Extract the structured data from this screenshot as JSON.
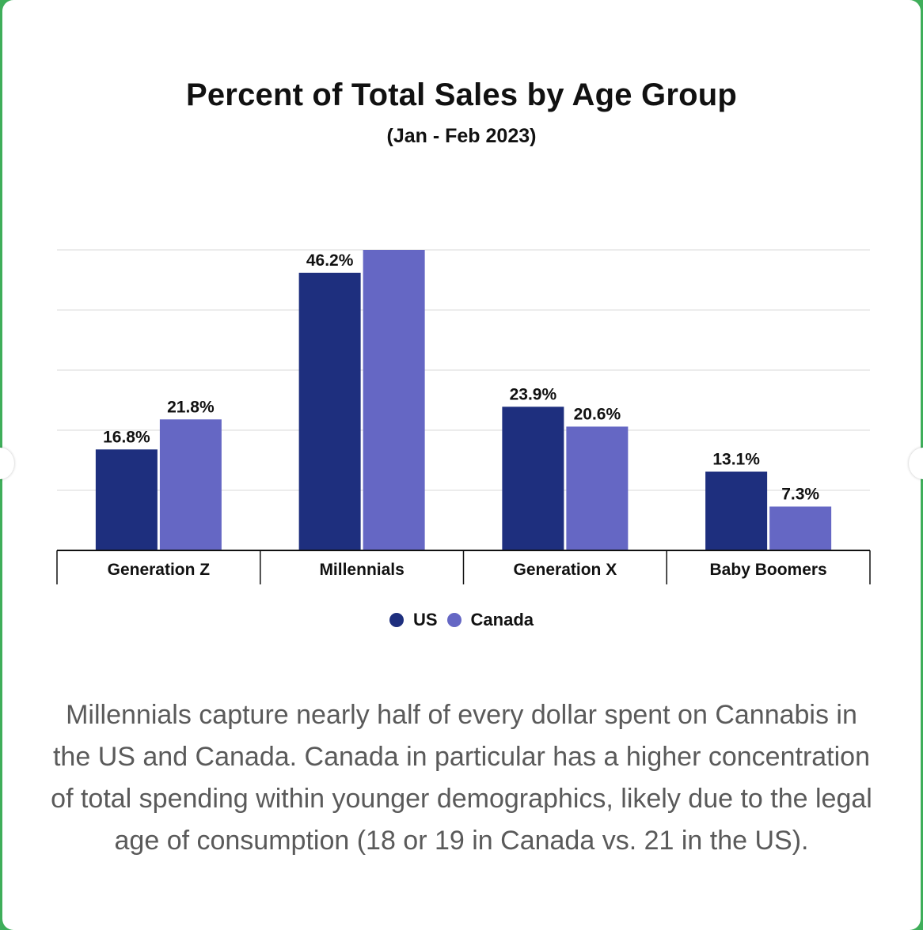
{
  "chart_data": {
    "type": "bar",
    "title": "Percent of Total Sales by Age Group",
    "subtitle": "(Jan - Feb 2023)",
    "categories": [
      "Generation Z",
      "Millennials",
      "Generation X",
      "Baby Boomers"
    ],
    "series": [
      {
        "name": "US",
        "color": "#1e2f7e",
        "values": [
          16.8,
          46.2,
          23.9,
          13.1
        ],
        "labels": [
          "16.8%",
          "46.2%",
          "23.9%",
          "13.1%"
        ]
      },
      {
        "name": "Canada",
        "color": "#6567c4",
        "values": [
          21.8,
          50.0,
          20.6,
          7.3
        ],
        "labels": [
          "21.8%",
          "",
          "20.6%",
          "7.3%"
        ]
      }
    ],
    "ylim": [
      0,
      50
    ],
    "gridlines": [
      10,
      20,
      30,
      40,
      50
    ],
    "grid": true,
    "legend_position": "bottom-center"
  },
  "caption": "Millennials capture nearly half of every dollar spent on Cannabis in the US and Canada. Canada in particular has a higher concentration of total spending within younger demographics, likely due to the legal age of consumption (18 or 19 in Canada vs. 21 in the US).",
  "nav": {
    "prev_icon": "chevron-left-icon",
    "next_icon": "chevron-right-icon"
  }
}
